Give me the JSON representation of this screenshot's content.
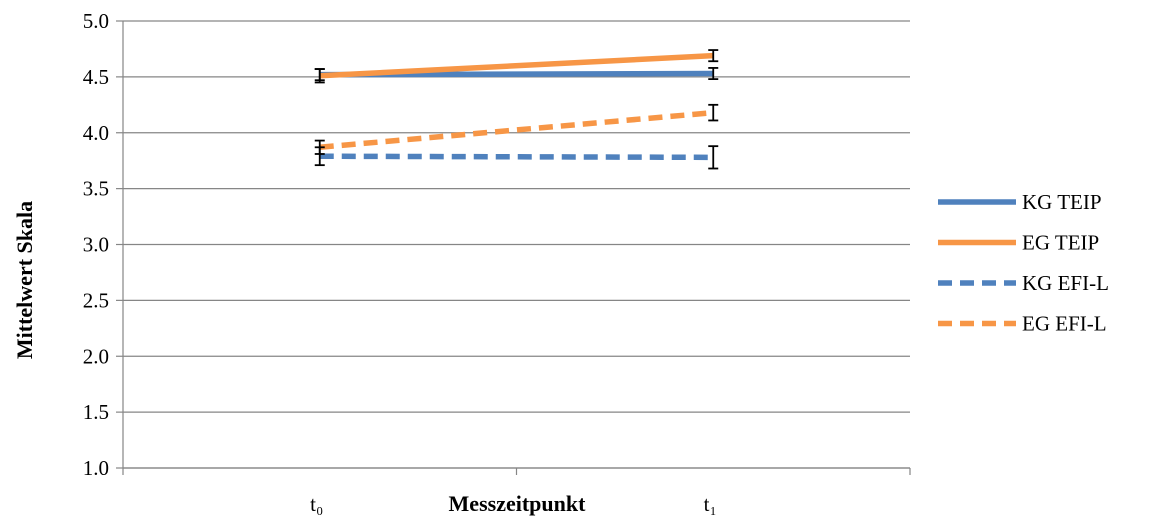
{
  "chart_data": {
    "type": "line",
    "title": "",
    "xlabel": "Messzeitpunkt",
    "ylabel": "Mittelwert Skala",
    "categories": [
      "t₀",
      "t₁"
    ],
    "ylim": [
      1.0,
      5.0
    ],
    "yticks": [
      "1.0",
      "1.5",
      "2.0",
      "2.5",
      "3.0",
      "3.5",
      "4.0",
      "4.5",
      "5.0"
    ],
    "grid": true,
    "legend_position": "right",
    "series": [
      {
        "name": "KG TEIP",
        "values": [
          4.52,
          4.53
        ],
        "error": [
          0.05,
          0.05
        ],
        "color": "#4f81bd",
        "dash": "solid"
      },
      {
        "name": "EG TEIP",
        "values": [
          4.51,
          4.69
        ],
        "error": [
          0.06,
          0.05
        ],
        "color": "#f79646",
        "dash": "solid"
      },
      {
        "name": "KG EFI-L",
        "values": [
          3.79,
          3.78
        ],
        "error": [
          0.08,
          0.1
        ],
        "color": "#4f81bd",
        "dash": "dashed"
      },
      {
        "name": "EG EFI-L",
        "values": [
          3.87,
          4.18
        ],
        "error": [
          0.06,
          0.07
        ],
        "color": "#f79646",
        "dash": "dashed"
      }
    ]
  }
}
